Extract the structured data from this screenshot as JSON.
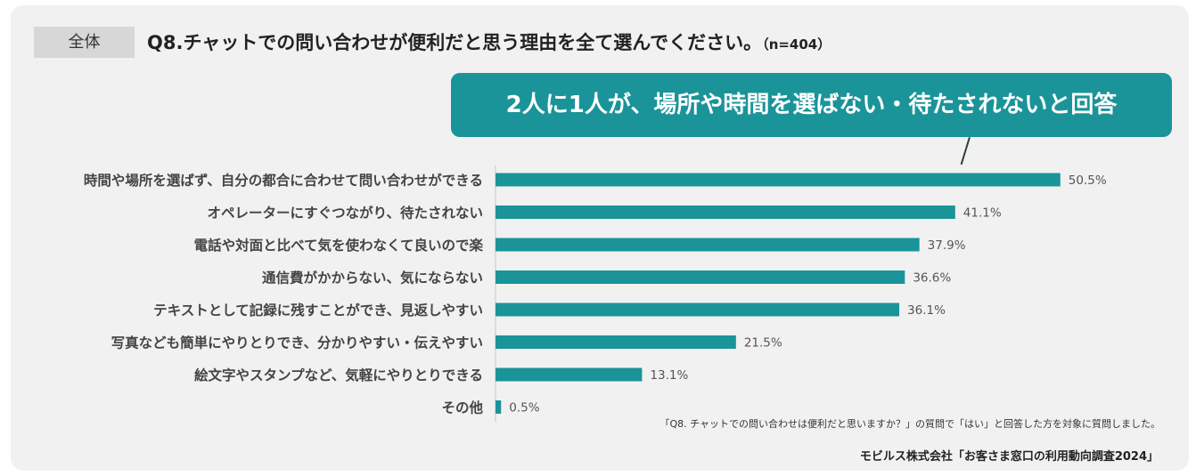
{
  "tag": "全体",
  "title": {
    "question": "Q8.チャットでの問い合わせが便利だと思う理由を全て選んでください。",
    "n_label": "（n=404）"
  },
  "callout": "2人に1人が、場所や時間を選ばない・待たされないと回答",
  "note": "「Q8. チャットでの問い合わせは便利だと思いますか？」の質問で「はい」と回答した方を対象に質問しました。",
  "source": "モビルス株式会社「お客さま窓口の利用動向調査2024」",
  "chart_data": {
    "type": "bar",
    "orientation": "horizontal",
    "categories": [
      "時間や場所を選ばず、自分の都合に合わせて問い合わせができる",
      "オペレーターにすぐつながり、待たされない",
      "電話や対面と比べて気を使わなくて良いので楽",
      "通信費がかからない、気にならない",
      "テキストとして記録に残すことができ、見返しやすい",
      "写真なども簡単にやりとりでき、分かりやすい・伝えやすい",
      "絵文字やスタンプなど、気軽にやりとりできる",
      "その他"
    ],
    "values": [
      50.5,
      41.1,
      37.9,
      36.6,
      36.1,
      21.5,
      13.1,
      0.5
    ],
    "value_labels": [
      "50.5%",
      "41.1%",
      "37.9%",
      "36.6%",
      "36.1%",
      "21.5%",
      "13.1%",
      "0.5%"
    ],
    "unit": "%",
    "xlim": [
      0,
      100
    ],
    "grid": false,
    "bar_color": "#1a9499"
  }
}
